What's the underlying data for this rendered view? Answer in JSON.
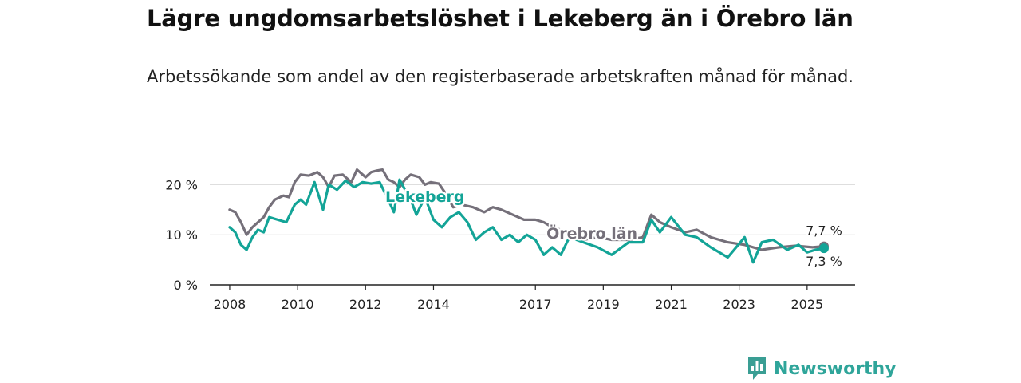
{
  "header": {
    "title": "Lägre ungdomsarbetslöshet i Lekeberg än i Örebro län",
    "subtitle": "Arbetssökande som andel av den registerbaserade arbetskraften månad för månad."
  },
  "brand": {
    "name": "Newsworthy",
    "logo_icon": "bar-chart-speech-icon",
    "color": "#3a9e94"
  },
  "chart_data": {
    "type": "line",
    "x_type": "date",
    "xlim": [
      "2007-06-01",
      "2026-06-01"
    ],
    "ylim": [
      0,
      25
    ],
    "yticks": [
      0,
      10,
      20
    ],
    "ytick_labels": [
      "0 %",
      "10 %",
      "20 %"
    ],
    "xticks": [
      "2008-01-01",
      "2010-01-01",
      "2012-01-01",
      "2014-01-01",
      "2017-01-01",
      "2019-01-01",
      "2021-01-01",
      "2023-01-01",
      "2025-01-01"
    ],
    "xtick_labels": [
      "2008",
      "2010",
      "2012",
      "2014",
      "2017",
      "2019",
      "2021",
      "2023",
      "2025"
    ],
    "grid": true,
    "series": [
      {
        "name": "Örebro län",
        "color": "#75707a",
        "end_label": "7,7 %",
        "points": [
          [
            "2008-01-01",
            15.0
          ],
          [
            "2008-03-01",
            14.5
          ],
          [
            "2008-05-01",
            12.5
          ],
          [
            "2008-07-01",
            10.0
          ],
          [
            "2008-09-01",
            11.5
          ],
          [
            "2008-11-01",
            12.5
          ],
          [
            "2009-01-01",
            13.5
          ],
          [
            "2009-03-01",
            15.5
          ],
          [
            "2009-05-01",
            17.0
          ],
          [
            "2009-08-01",
            17.8
          ],
          [
            "2009-10-01",
            17.5
          ],
          [
            "2009-12-01",
            20.5
          ],
          [
            "2010-02-01",
            22.0
          ],
          [
            "2010-05-01",
            21.8
          ],
          [
            "2010-08-01",
            22.5
          ],
          [
            "2010-10-01",
            21.5
          ],
          [
            "2010-12-01",
            19.5
          ],
          [
            "2011-02-01",
            21.8
          ],
          [
            "2011-05-01",
            22.0
          ],
          [
            "2011-08-01",
            20.5
          ],
          [
            "2011-10-01",
            23.0
          ],
          [
            "2012-01-01",
            21.5
          ],
          [
            "2012-03-01",
            22.5
          ],
          [
            "2012-05-01",
            22.8
          ],
          [
            "2012-07-01",
            23.0
          ],
          [
            "2012-09-01",
            21.0
          ],
          [
            "2012-11-01",
            20.5
          ],
          [
            "2013-01-01",
            19.5
          ],
          [
            "2013-03-01",
            21.0
          ],
          [
            "2013-05-01",
            22.0
          ],
          [
            "2013-08-01",
            21.5
          ],
          [
            "2013-10-01",
            20.0
          ],
          [
            "2013-12-01",
            20.5
          ],
          [
            "2014-03-01",
            20.2
          ],
          [
            "2014-05-01",
            18.5
          ],
          [
            "2014-08-01",
            15.5
          ],
          [
            "2014-11-01",
            16.0
          ],
          [
            "2015-03-01",
            15.5
          ],
          [
            "2015-07-01",
            14.5
          ],
          [
            "2015-10-01",
            15.5
          ],
          [
            "2016-01-01",
            15.0
          ],
          [
            "2016-05-01",
            14.0
          ],
          [
            "2016-09-01",
            13.0
          ],
          [
            "2017-01-01",
            13.0
          ],
          [
            "2017-04-01",
            12.5
          ],
          [
            "2017-07-01",
            11.5
          ],
          [
            "2018-01-01",
            10.5
          ],
          [
            "2018-06-01",
            9.0
          ],
          [
            "2018-11-01",
            9.5
          ],
          [
            "2019-04-01",
            9.0
          ],
          [
            "2019-10-01",
            9.0
          ],
          [
            "2020-03-01",
            9.5
          ],
          [
            "2020-06-01",
            14.0
          ],
          [
            "2020-09-01",
            12.5
          ],
          [
            "2021-01-01",
            11.5
          ],
          [
            "2021-06-01",
            10.5
          ],
          [
            "2021-10-01",
            11.0
          ],
          [
            "2022-03-01",
            9.5
          ],
          [
            "2022-09-01",
            8.5
          ],
          [
            "2023-03-01",
            8.0
          ],
          [
            "2023-09-01",
            7.0
          ],
          [
            "2024-03-01",
            7.5
          ],
          [
            "2024-09-01",
            7.8
          ],
          [
            "2025-03-01",
            7.5
          ],
          [
            "2025-07-01",
            7.7
          ]
        ]
      },
      {
        "name": "Lekeberg",
        "color": "#13a497",
        "end_label": "7,3 %",
        "points": [
          [
            "2008-01-01",
            11.5
          ],
          [
            "2008-03-01",
            10.5
          ],
          [
            "2008-05-01",
            8.0
          ],
          [
            "2008-07-01",
            7.0
          ],
          [
            "2008-09-01",
            9.5
          ],
          [
            "2008-11-01",
            11.0
          ],
          [
            "2009-01-01",
            10.5
          ],
          [
            "2009-03-01",
            13.5
          ],
          [
            "2009-06-01",
            13.0
          ],
          [
            "2009-09-01",
            12.5
          ],
          [
            "2009-12-01",
            16.0
          ],
          [
            "2010-02-01",
            17.0
          ],
          [
            "2010-04-01",
            16.0
          ],
          [
            "2010-07-01",
            20.5
          ],
          [
            "2010-10-01",
            15.0
          ],
          [
            "2010-12-01",
            20.0
          ],
          [
            "2011-03-01",
            19.0
          ],
          [
            "2011-06-01",
            20.8
          ],
          [
            "2011-09-01",
            19.5
          ],
          [
            "2011-12-01",
            20.5
          ],
          [
            "2012-03-01",
            20.2
          ],
          [
            "2012-06-01",
            20.5
          ],
          [
            "2012-09-01",
            17.0
          ],
          [
            "2012-11-01",
            14.5
          ],
          [
            "2013-01-01",
            21.0
          ],
          [
            "2013-03-01",
            19.0
          ],
          [
            "2013-05-01",
            17.0
          ],
          [
            "2013-07-01",
            14.0
          ],
          [
            "2013-10-01",
            17.5
          ],
          [
            "2014-01-01",
            13.0
          ],
          [
            "2014-04-01",
            11.5
          ],
          [
            "2014-07-01",
            13.5
          ],
          [
            "2014-10-01",
            14.5
          ],
          [
            "2015-01-01",
            12.5
          ],
          [
            "2015-04-01",
            9.0
          ],
          [
            "2015-07-01",
            10.5
          ],
          [
            "2015-10-01",
            11.5
          ],
          [
            "2016-01-01",
            9.0
          ],
          [
            "2016-04-01",
            10.0
          ],
          [
            "2016-07-01",
            8.5
          ],
          [
            "2016-10-01",
            10.0
          ],
          [
            "2017-01-01",
            9.0
          ],
          [
            "2017-04-01",
            6.0
          ],
          [
            "2017-07-01",
            7.5
          ],
          [
            "2017-10-01",
            6.0
          ],
          [
            "2018-01-01",
            9.5
          ],
          [
            "2018-06-01",
            8.5
          ],
          [
            "2018-11-01",
            7.5
          ],
          [
            "2019-04-01",
            6.0
          ],
          [
            "2019-10-01",
            8.5
          ],
          [
            "2020-03-01",
            8.5
          ],
          [
            "2020-06-01",
            13.0
          ],
          [
            "2020-09-01",
            10.5
          ],
          [
            "2021-01-01",
            13.5
          ],
          [
            "2021-06-01",
            10.0
          ],
          [
            "2021-10-01",
            9.5
          ],
          [
            "2022-03-01",
            7.5
          ],
          [
            "2022-09-01",
            5.5
          ],
          [
            "2023-03-01",
            9.5
          ],
          [
            "2023-06-01",
            4.5
          ],
          [
            "2023-09-01",
            8.5
          ],
          [
            "2024-01-01",
            9.0
          ],
          [
            "2024-06-01",
            7.0
          ],
          [
            "2024-10-01",
            8.0
          ],
          [
            "2025-01-01",
            6.5
          ],
          [
            "2025-04-01",
            7.0
          ],
          [
            "2025-07-01",
            7.3
          ]
        ]
      }
    ]
  }
}
